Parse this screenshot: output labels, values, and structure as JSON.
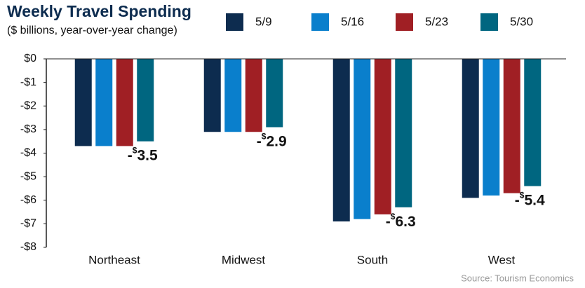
{
  "chart_data": {
    "type": "bar",
    "title": "Weekly Travel Spending",
    "subtitle": "($ billions, year-over-year change)",
    "source": "Source: Tourism Economics",
    "categories": [
      "Northeast",
      "Midwest",
      "South",
      "West"
    ],
    "series": [
      {
        "name": "5/9",
        "color": "#0d2c4f",
        "values": [
          -3.7,
          -3.1,
          -6.9,
          -5.9
        ]
      },
      {
        "name": "5/16",
        "color": "#0a7fcc",
        "values": [
          -3.7,
          -3.1,
          -6.8,
          -5.8
        ]
      },
      {
        "name": "5/23",
        "color": "#a01f24",
        "values": [
          -3.7,
          -3.1,
          -6.6,
          -5.7
        ]
      },
      {
        "name": "5/30",
        "color": "#006680",
        "values": [
          -3.5,
          -2.9,
          -6.3,
          -5.4
        ],
        "value_labels": [
          "-$3.5",
          "-$2.9",
          "-$6.3",
          "-$5.4"
        ]
      }
    ],
    "ylim": [
      -8,
      0
    ],
    "yticks": [
      {
        "value": 0,
        "label": "$0"
      },
      {
        "value": -1,
        "label": "-$1"
      },
      {
        "value": -2,
        "label": "-$2"
      },
      {
        "value": -3,
        "label": "-$3"
      },
      {
        "value": -4,
        "label": "-$4"
      },
      {
        "value": -5,
        "label": "-$5"
      },
      {
        "value": -6,
        "label": "-$6"
      },
      {
        "value": -7,
        "label": "-$7"
      },
      {
        "value": -8,
        "label": "-$8"
      }
    ],
    "legend": "top-right"
  }
}
